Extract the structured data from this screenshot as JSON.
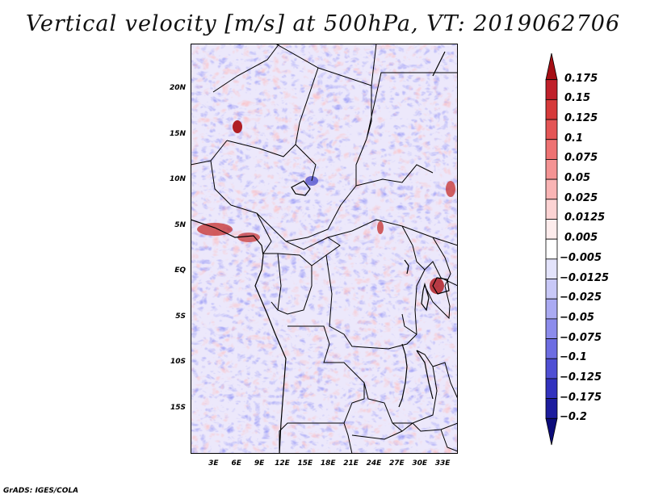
{
  "title": "Vertical velocity [m/s] at 500hPa, VT: 2019062706",
  "footer": "GrADS: IGES/COLA",
  "map": {
    "lat_labels": [
      "20N",
      "15N",
      "10N",
      "5N",
      "EQ",
      "5S",
      "10S",
      "15S"
    ],
    "lon_labels": [
      "3E",
      "6E",
      "9E",
      "12E",
      "15E",
      "18E",
      "21E",
      "24E",
      "27E",
      "30E",
      "33E"
    ],
    "lat_range": [
      -20,
      25
    ],
    "lon_range": [
      0,
      35
    ]
  },
  "colorbar": {
    "labels": [
      "0.175",
      "0.15",
      "0.125",
      "0.1",
      "0.075",
      "0.05",
      "0.025",
      "0.0125",
      "0.005",
      "−0.005",
      "−0.0125",
      "−0.025",
      "−0.05",
      "−0.075",
      "−0.1",
      "−0.125",
      "−0.175",
      "−0.2"
    ],
    "colors": [
      "#a50f15",
      "#c0202a",
      "#d63a3a",
      "#e45555",
      "#ee7272",
      "#f49393",
      "#f9b4b4",
      "#fcd3d3",
      "#fdecec",
      "#ffffff",
      "#e3e3fb",
      "#c8c8f7",
      "#aaaaf2",
      "#8c8cec",
      "#6d6de2",
      "#4f4fd4",
      "#3232be",
      "#1d1d9e",
      "#0c0c7a"
    ]
  }
}
